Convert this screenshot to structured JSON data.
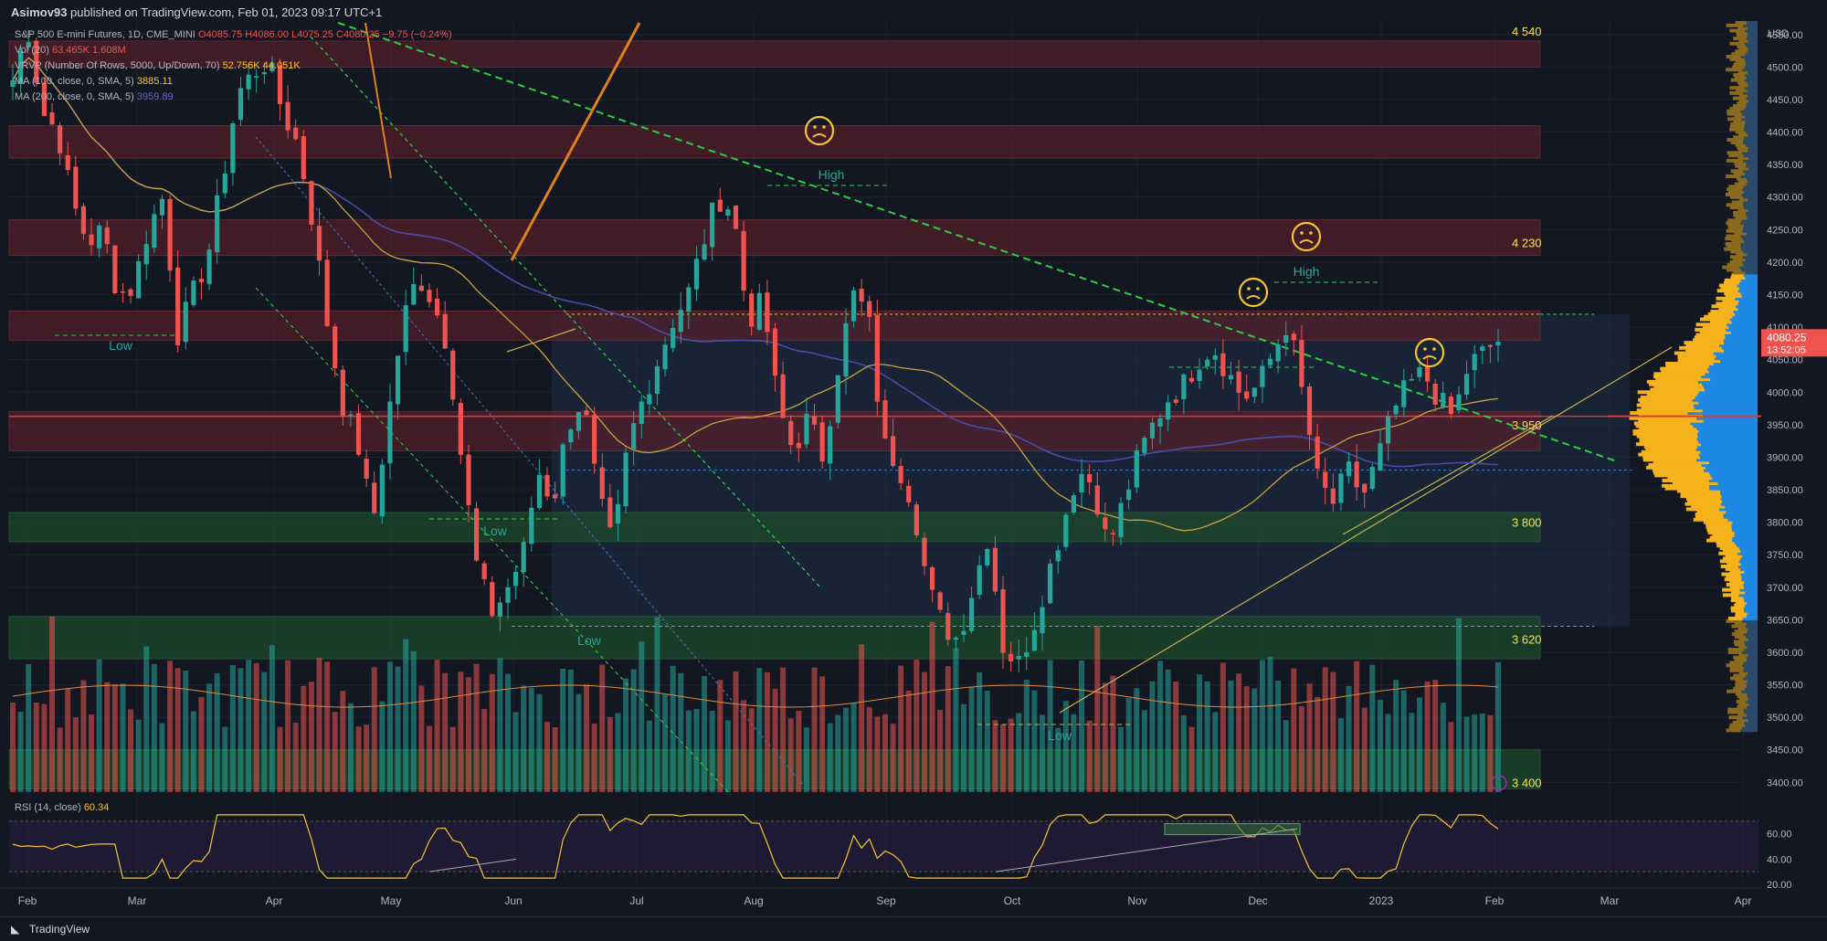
{
  "header": {
    "author": "Asimov93",
    "published_text": "published on TradingView.com, Feb 01, 2023 09:17 UTC+1"
  },
  "legend": {
    "symbol": "S&P 500 E-mini Futures, 1D, CME_MINI",
    "ohlc": "O4085.75  H4086.00  L4075.25  C4080.25  −9.75 (−0.24%)",
    "vol_label": "Vol (20)",
    "vol_values": "63.465K  1.608M",
    "vrvp_label": "VRVP (Number Of Rows, 5000, Up/Down, 70)",
    "vrvp_values": "52.756K  44.051K",
    "ma100_label": "MA (100, close, 0, SMA, 5)",
    "ma100_value": "3885.11",
    "ma200_label": "MA (200, close, 0, SMA, 5)",
    "ma200_value": "3959.89"
  },
  "rsi": {
    "label": "RSI (14, close)",
    "value": "60.34"
  },
  "footer": {
    "brand": "TradingView"
  },
  "colors": {
    "bg": "#131722",
    "up": "#26a69a",
    "down": "#ef5350",
    "ma100": "#c8a23c",
    "ma200": "#4a4aa8",
    "zone_red": "#5b1f2a",
    "zone_green": "#1d4d2b",
    "profile_up": "#1e88e5",
    "profile_down": "#f5b21a",
    "trend": "#2ecc40"
  },
  "chart_data": {
    "type": "candlestick",
    "currency": "USD",
    "y_ticks": [
      "4550.00",
      "4500.00",
      "4450.00",
      "4400.00",
      "4350.00",
      "4300.00",
      "4250.00",
      "4200.00",
      "4150.00",
      "4100.00",
      "4050.00",
      "4000.00",
      "3950.00",
      "3900.00",
      "3850.00",
      "3800.00",
      "3750.00",
      "3700.00",
      "3650.00",
      "3600.00",
      "3550.00",
      "3500.00",
      "3450.00",
      "3400.00"
    ],
    "ylim": [
      3385,
      4575
    ],
    "x_labels": [
      "Feb",
      "Mar",
      "Apr",
      "May",
      "Jun",
      "Jul",
      "Aug",
      "Sep",
      "Oct",
      "Nov",
      "Dec",
      "2023",
      "Feb",
      "Mar",
      "Apr"
    ],
    "last_price": "4080.25",
    "countdown": "13:52:05",
    "level_labels": [
      "4 540",
      "4 230",
      "3 950",
      "3 800",
      "3 620",
      "3 400"
    ],
    "annotations": [
      "High",
      "High",
      "Low",
      "Low",
      "Low",
      "Low"
    ],
    "zones_red": [
      [
        4500,
        4540
      ],
      [
        4360,
        4410
      ],
      [
        4210,
        4265
      ],
      [
        4080,
        4125
      ],
      [
        3910,
        3970
      ]
    ],
    "zones_green": [
      [
        3770,
        3815
      ],
      [
        3590,
        3655
      ],
      [
        3390,
        3450
      ]
    ],
    "rsi_ticks": [
      "60.00",
      "40.00",
      "20.00"
    ],
    "rsi_range": [
      20,
      80
    ],
    "price_path": [
      4480,
      4560,
      4430,
      4400,
      4290,
      4230,
      4250,
      4150,
      4160,
      4250,
      4300,
      4090,
      4150,
      4210,
      4330,
      4460,
      4490,
      4510,
      4430,
      4380,
      4260,
      4100,
      3980,
      3920,
      3800,
      3960,
      4110,
      4180,
      4140,
      4070,
      3880,
      3720,
      3660,
      3700,
      3750,
      3880,
      3830,
      3950,
      3990,
      3840,
      3760,
      3920,
      3990,
      4050,
      4110,
      4150,
      4230,
      4300,
      4280,
      4110,
      4140,
      3980,
      3910,
      3960,
      3900,
      4040,
      4150,
      4120,
      3920,
      3890,
      3830,
      3700,
      3640,
      3620,
      3700,
      3780,
      3610,
      3580,
      3640,
      3720,
      3800,
      3880,
      3860,
      3760,
      3830,
      3900,
      3950,
      3990,
      4010,
      4050,
      4070,
      4030,
      3990,
      4010,
      4060,
      4110,
      3990,
      3860,
      3830,
      3880,
      3840,
      3900,
      3970,
      4010,
      4030,
      3990,
      3960,
      4040,
      4060,
      4080
    ]
  }
}
